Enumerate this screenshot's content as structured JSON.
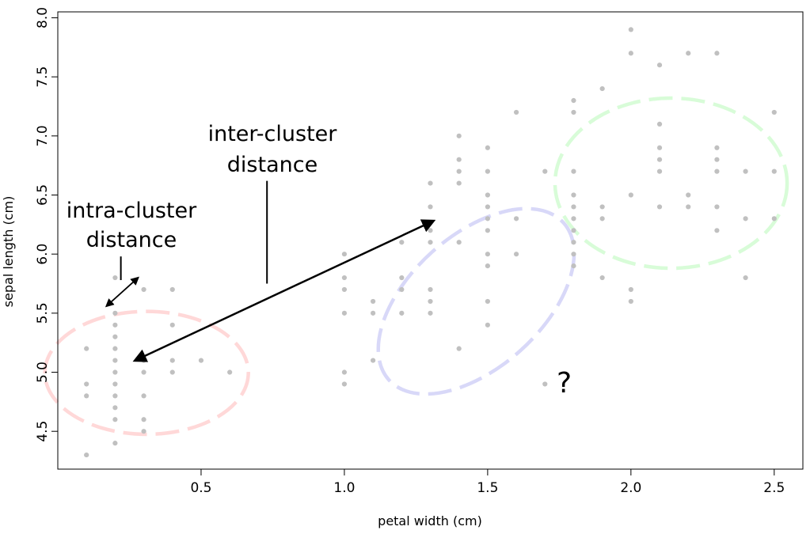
{
  "chart_data": {
    "type": "scatter",
    "title": "",
    "xlabel": "petal width (cm)",
    "ylabel": "sepal length (cm)",
    "xlim": [
      0.0,
      2.6
    ],
    "ylim": [
      4.18,
      8.05
    ],
    "xticks": [
      "0.5",
      "1.0",
      "1.5",
      "2.0",
      "2.5"
    ],
    "yticks": [
      "4.5",
      "5.0",
      "5.5",
      "6.0",
      "6.5",
      "7.0",
      "7.5",
      "8.0"
    ],
    "grid": false,
    "point_color": "#c0c0c0",
    "points": [
      [
        0.1,
        4.3
      ],
      [
        0.1,
        4.8
      ],
      [
        0.1,
        4.9
      ],
      [
        0.1,
        5.2
      ],
      [
        0.2,
        4.4
      ],
      [
        0.2,
        4.6
      ],
      [
        0.2,
        4.7
      ],
      [
        0.2,
        4.8
      ],
      [
        0.2,
        4.9
      ],
      [
        0.2,
        5.0
      ],
      [
        0.2,
        5.1
      ],
      [
        0.2,
        5.2
      ],
      [
        0.2,
        5.3
      ],
      [
        0.2,
        5.4
      ],
      [
        0.2,
        5.5
      ],
      [
        0.2,
        5.8
      ],
      [
        0.3,
        4.5
      ],
      [
        0.3,
        4.6
      ],
      [
        0.3,
        4.8
      ],
      [
        0.3,
        5.0
      ],
      [
        0.3,
        5.1
      ],
      [
        0.3,
        5.7
      ],
      [
        0.4,
        5.0
      ],
      [
        0.4,
        5.1
      ],
      [
        0.4,
        5.4
      ],
      [
        0.4,
        5.7
      ],
      [
        0.5,
        5.1
      ],
      [
        0.6,
        5.0
      ],
      [
        1.0,
        4.9
      ],
      [
        1.0,
        5.0
      ],
      [
        1.0,
        5.5
      ],
      [
        1.0,
        5.7
      ],
      [
        1.0,
        5.8
      ],
      [
        1.0,
        6.0
      ],
      [
        1.1,
        5.1
      ],
      [
        1.1,
        5.5
      ],
      [
        1.1,
        5.6
      ],
      [
        1.2,
        5.5
      ],
      [
        1.2,
        5.7
      ],
      [
        1.2,
        5.8
      ],
      [
        1.2,
        6.1
      ],
      [
        1.3,
        5.5
      ],
      [
        1.3,
        5.6
      ],
      [
        1.3,
        5.7
      ],
      [
        1.3,
        6.1
      ],
      [
        1.3,
        6.2
      ],
      [
        1.3,
        6.4
      ],
      [
        1.3,
        6.6
      ],
      [
        1.4,
        5.2
      ],
      [
        1.4,
        6.1
      ],
      [
        1.4,
        6.6
      ],
      [
        1.4,
        6.7
      ],
      [
        1.4,
        6.8
      ],
      [
        1.4,
        7.0
      ],
      [
        1.5,
        5.4
      ],
      [
        1.5,
        5.6
      ],
      [
        1.5,
        5.9
      ],
      [
        1.5,
        6.0
      ],
      [
        1.5,
        6.2
      ],
      [
        1.5,
        6.3
      ],
      [
        1.5,
        6.4
      ],
      [
        1.5,
        6.5
      ],
      [
        1.5,
        6.7
      ],
      [
        1.5,
        6.9
      ],
      [
        1.6,
        6.0
      ],
      [
        1.6,
        6.3
      ],
      [
        1.6,
        7.2
      ],
      [
        1.7,
        4.9
      ],
      [
        1.7,
        6.7
      ],
      [
        1.8,
        5.9
      ],
      [
        1.8,
        6.0
      ],
      [
        1.8,
        6.1
      ],
      [
        1.8,
        6.2
      ],
      [
        1.8,
        6.3
      ],
      [
        1.8,
        6.4
      ],
      [
        1.8,
        6.5
      ],
      [
        1.8,
        6.7
      ],
      [
        1.8,
        7.2
      ],
      [
        1.8,
        7.3
      ],
      [
        1.9,
        5.8
      ],
      [
        1.9,
        6.3
      ],
      [
        1.9,
        6.4
      ],
      [
        1.9,
        7.4
      ],
      [
        2.0,
        5.6
      ],
      [
        2.0,
        5.7
      ],
      [
        2.0,
        6.5
      ],
      [
        2.0,
        7.7
      ],
      [
        2.0,
        7.9
      ],
      [
        2.1,
        6.4
      ],
      [
        2.1,
        6.7
      ],
      [
        2.1,
        6.8
      ],
      [
        2.1,
        6.9
      ],
      [
        2.1,
        7.1
      ],
      [
        2.1,
        7.6
      ],
      [
        2.2,
        6.4
      ],
      [
        2.2,
        6.5
      ],
      [
        2.2,
        7.7
      ],
      [
        2.3,
        6.2
      ],
      [
        2.3,
        6.4
      ],
      [
        2.3,
        6.7
      ],
      [
        2.3,
        6.8
      ],
      [
        2.3,
        6.9
      ],
      [
        2.3,
        7.7
      ],
      [
        2.4,
        5.8
      ],
      [
        2.4,
        6.3
      ],
      [
        2.4,
        6.7
      ],
      [
        2.5,
        6.3
      ],
      [
        2.5,
        6.7
      ],
      [
        2.5,
        7.2
      ]
    ],
    "clusters": [
      {
        "cx": 0.31,
        "cy": 4.995,
        "rx": 0.71,
        "ry": 1.04,
        "rotate": 0,
        "color": "#ffd8d8"
      },
      {
        "cx": 1.46,
        "cy": 5.6,
        "rx": 0.82,
        "ry": 1.12,
        "rotate": 42,
        "color": "#d8d8f8"
      },
      {
        "cx": 2.14,
        "cy": 6.6,
        "rx": 0.81,
        "ry": 1.44,
        "rotate": 0,
        "color": "#d8fcd8"
      }
    ],
    "annotations": {
      "inter_label_1": "inter-cluster",
      "inter_label_2": "distance",
      "intra_label_1": "intra-cluster",
      "intra_label_2": "distance",
      "unknown_marker": "?"
    },
    "inter_arrow": {
      "from": [
        0.27,
        5.1
      ],
      "to": [
        1.31,
        6.28
      ]
    },
    "intra_arrow": {
      "from": [
        0.17,
        5.56
      ],
      "to": [
        0.28,
        5.8
      ]
    },
    "inter_leader": {
      "x": 0.73,
      "y_top": 6.62,
      "y_bottom": 5.75
    },
    "intra_leader": {
      "x": 0.22,
      "y_top": 5.98,
      "y_bottom": 5.78
    }
  }
}
